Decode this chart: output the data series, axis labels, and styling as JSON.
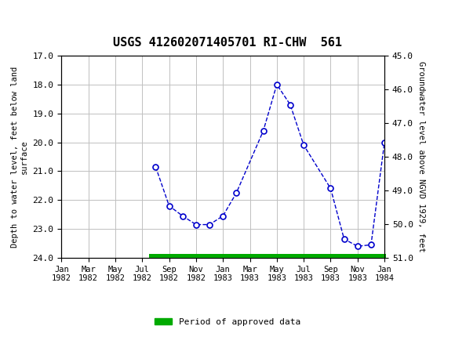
{
  "title": "USGS 412602071405701 RI-CHW  561",
  "header_bg": "#1a6b3c",
  "x_tick_labels": [
    "Jan\n1982",
    "Mar\n1982",
    "May\n1982",
    "Jul\n1982",
    "Sep\n1982",
    "Nov\n1982",
    "Jan\n1983",
    "Mar\n1983",
    "May\n1983",
    "Jul\n1983",
    "Sep\n1983",
    "Nov\n1983",
    "Jan\n1984"
  ],
  "x_tick_positions": [
    0,
    2,
    4,
    6,
    8,
    10,
    12,
    14,
    16,
    18,
    20,
    22,
    24
  ],
  "data_x": [
    7,
    8,
    9,
    10,
    11,
    12,
    13,
    15,
    16,
    17,
    18,
    20,
    21,
    22,
    23,
    24
  ],
  "data_y": [
    20.85,
    22.2,
    22.55,
    22.85,
    22.85,
    22.55,
    21.75,
    19.6,
    18.0,
    18.7,
    20.1,
    21.6,
    23.35,
    23.6,
    23.55,
    20.0
  ],
  "ylim_left": [
    17.0,
    24.0
  ],
  "ylim_right": [
    51.0,
    45.0
  ],
  "y_left_ticks": [
    17.0,
    18.0,
    19.0,
    20.0,
    21.0,
    22.0,
    23.0,
    24.0
  ],
  "y_right_ticks": [
    51.0,
    50.0,
    49.0,
    48.0,
    47.0,
    46.0,
    45.0
  ],
  "ylabel_left": "Depth to water level, feet below land\nsurface",
  "ylabel_right": "Groundwater level above NGVD 1929, feet",
  "line_color": "#0000cc",
  "marker_color": "#0000cc",
  "marker_face": "white",
  "grid_color": "#c0c0c0",
  "approved_bar_x_start": 6.5,
  "approved_bar_x_end": 24.1,
  "approved_bar_color": "#00aa00",
  "legend_label": "Period of approved data",
  "background_color": "white"
}
